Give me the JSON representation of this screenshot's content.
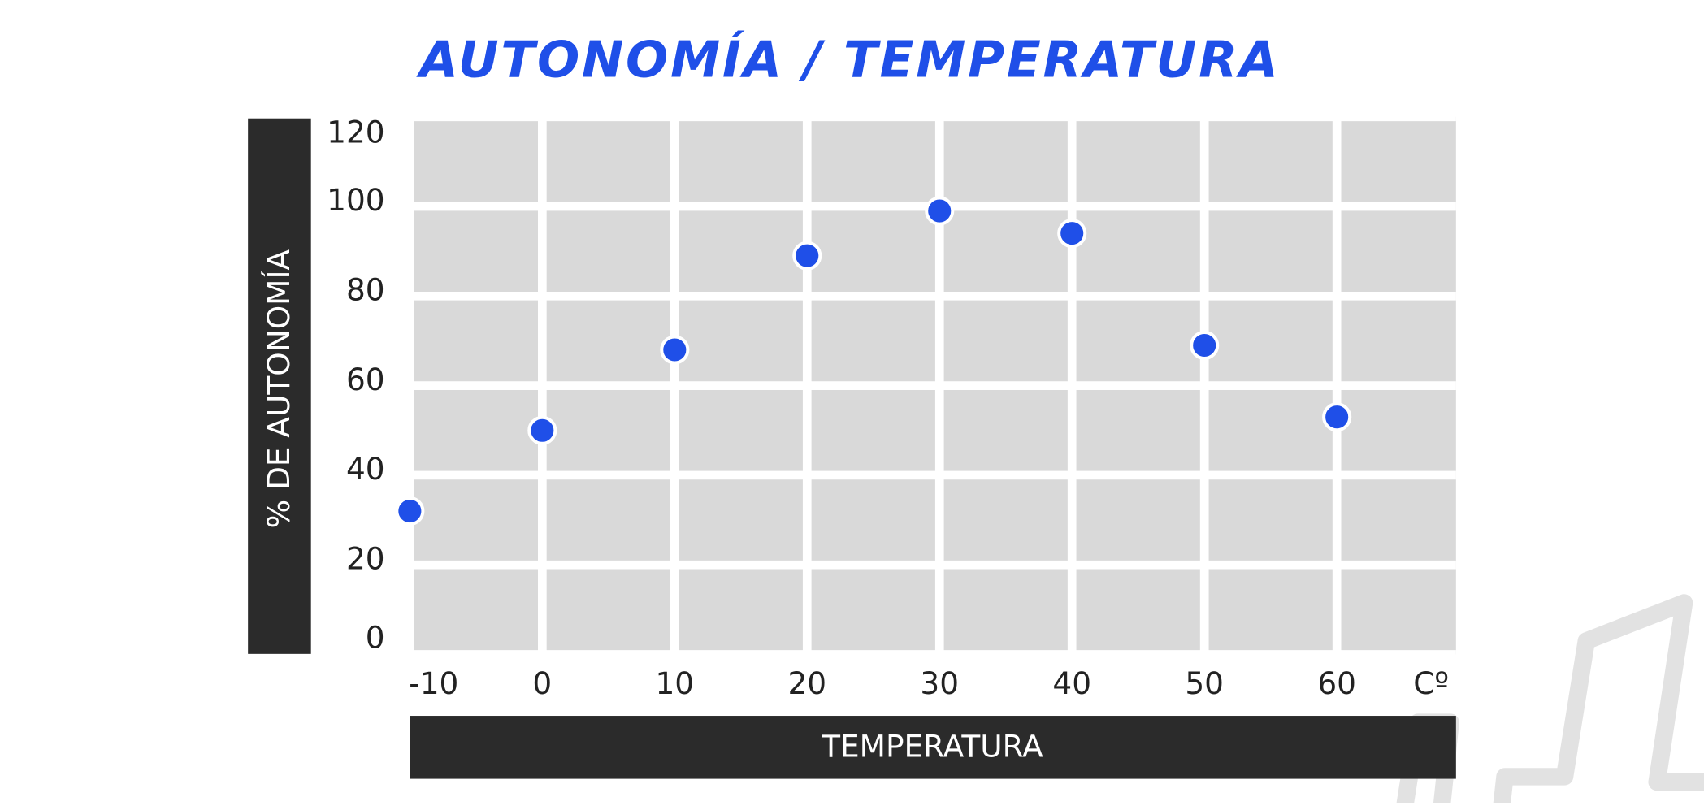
{
  "chart_data": {
    "type": "scatter",
    "title": "AUTONOMÍA / TEMPERATURA",
    "x_label": "TEMPERATURA",
    "y_label": "% DE AUTONOMÍA",
    "x_unit": "Cº",
    "series": [
      {
        "name": "Autonomía",
        "color": "#1f4fe8",
        "x": [
          -10,
          0,
          10,
          20,
          30,
          40,
          50,
          60
        ],
        "values": [
          32,
          50,
          68,
          89,
          99,
          94,
          69,
          53
        ]
      }
    ],
    "xlim": [
      -10,
      69
    ],
    "xticks": [
      -10,
      0,
      10,
      20,
      30,
      40,
      50,
      60
    ],
    "ylim": [
      0,
      120
    ],
    "yticks": [
      0,
      20,
      40,
      60,
      80,
      100,
      120
    ],
    "grid": true
  }
}
